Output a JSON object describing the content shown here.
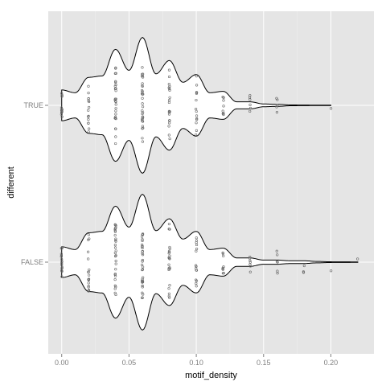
{
  "chart_data": {
    "type": "violin",
    "title": "",
    "xlabel": "motif_density",
    "ylabel": "different",
    "xlim": [
      -0.01,
      0.232
    ],
    "x_ticks": [
      0.0,
      0.05,
      0.1,
      0.15,
      0.2
    ],
    "x_tick_labels": [
      "0.00",
      "0.05",
      "0.10",
      "0.15",
      "0.20"
    ],
    "categories": [
      "TRUE",
      "FALSE"
    ],
    "grid": true,
    "colors": {
      "panel": "#e5e5e5",
      "grid": "#ffffff",
      "violin_fill": "#ffffff",
      "violin_stroke": "#000000",
      "points": "#666666"
    },
    "series": [
      {
        "category": "TRUE",
        "density_profile": [
          [
            0.0,
            0.22
          ],
          [
            0.01,
            0.18
          ],
          [
            0.02,
            0.4
          ],
          [
            0.03,
            0.42
          ],
          [
            0.04,
            0.8
          ],
          [
            0.05,
            0.5
          ],
          [
            0.06,
            0.97
          ],
          [
            0.07,
            0.45
          ],
          [
            0.08,
            0.64
          ],
          [
            0.09,
            0.33
          ],
          [
            0.1,
            0.44
          ],
          [
            0.11,
            0.18
          ],
          [
            0.12,
            0.2
          ],
          [
            0.13,
            0.05
          ],
          [
            0.14,
            0.05
          ],
          [
            0.15,
            0.02
          ],
          [
            0.16,
            0.015
          ],
          [
            0.17,
            0.006
          ],
          [
            0.18,
            0.004
          ],
          [
            0.19,
            0.003
          ],
          [
            0.2,
            0.003
          ]
        ],
        "points": [
          {
            "x": 0.0,
            "count": 12
          },
          {
            "x": 0.02,
            "count": 16
          },
          {
            "x": 0.04,
            "count": 28
          },
          {
            "x": 0.06,
            "count": 32
          },
          {
            "x": 0.08,
            "count": 20
          },
          {
            "x": 0.1,
            "count": 14
          },
          {
            "x": 0.12,
            "count": 8
          },
          {
            "x": 0.14,
            "count": 6
          },
          {
            "x": 0.16,
            "count": 5
          },
          {
            "x": 0.2,
            "count": 1
          }
        ]
      },
      {
        "category": "FALSE",
        "density_profile": [
          [
            0.0,
            0.22
          ],
          [
            0.01,
            0.18
          ],
          [
            0.02,
            0.42
          ],
          [
            0.03,
            0.44
          ],
          [
            0.04,
            0.8
          ],
          [
            0.05,
            0.5
          ],
          [
            0.06,
            0.97
          ],
          [
            0.07,
            0.45
          ],
          [
            0.08,
            0.62
          ],
          [
            0.09,
            0.33
          ],
          [
            0.1,
            0.44
          ],
          [
            0.11,
            0.18
          ],
          [
            0.12,
            0.2
          ],
          [
            0.13,
            0.06
          ],
          [
            0.14,
            0.06
          ],
          [
            0.15,
            0.03
          ],
          [
            0.16,
            0.03
          ],
          [
            0.17,
            0.02
          ],
          [
            0.18,
            0.02
          ],
          [
            0.19,
            0.01
          ],
          [
            0.2,
            0.005
          ],
          [
            0.21,
            0.004
          ],
          [
            0.22,
            0.003
          ]
        ],
        "points": [
          {
            "x": 0.0,
            "count": 14
          },
          {
            "x": 0.02,
            "count": 18
          },
          {
            "x": 0.04,
            "count": 30
          },
          {
            "x": 0.06,
            "count": 34
          },
          {
            "x": 0.08,
            "count": 22
          },
          {
            "x": 0.1,
            "count": 15
          },
          {
            "x": 0.12,
            "count": 9
          },
          {
            "x": 0.14,
            "count": 7
          },
          {
            "x": 0.16,
            "count": 6
          },
          {
            "x": 0.18,
            "count": 3
          },
          {
            "x": 0.2,
            "count": 1
          },
          {
            "x": 0.22,
            "count": 1
          }
        ]
      }
    ]
  }
}
